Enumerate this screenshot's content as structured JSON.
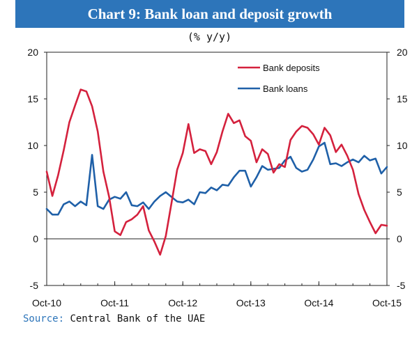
{
  "chart_data": {
    "type": "line",
    "title": "Chart 9: Bank loan and deposit growth",
    "subtitle": "(% y/y)",
    "source_label": "Source:",
    "source_text": "Central Bank of the UAE",
    "ylim": [
      -5,
      20
    ],
    "yticks": [
      "20",
      "15",
      "10",
      "5",
      "0",
      "-5"
    ],
    "ytick_values": [
      20,
      15,
      10,
      5,
      0,
      -5
    ],
    "xticks": [
      "Oct-10",
      "Oct-11",
      "Oct-12",
      "Oct-13",
      "Oct-14",
      "Oct-15"
    ],
    "xtick_months": [
      0,
      12,
      24,
      36,
      48,
      60
    ],
    "xlim_months": [
      0,
      60
    ],
    "legend_position": "top-right",
    "series": [
      {
        "name": "Bank deposits",
        "color": "#d4213d",
        "values": [
          7.2,
          4.6,
          6.8,
          9.5,
          12.5,
          14.3,
          16.0,
          15.8,
          14.2,
          11.5,
          7.2,
          4.5,
          0.8,
          0.4,
          1.8,
          2.1,
          2.6,
          3.5,
          0.9,
          -0.3,
          -1.7,
          0.3,
          3.8,
          7.4,
          9.2,
          12.3,
          9.2,
          9.6,
          9.4,
          8.0,
          9.3,
          11.5,
          13.4,
          12.4,
          12.7,
          11.0,
          10.5,
          8.2,
          9.6,
          9.1,
          7.1,
          8.0,
          7.7,
          10.6,
          11.5,
          12.1,
          11.9,
          11.2,
          10.1,
          11.9,
          11.1,
          9.3,
          10.1,
          8.9,
          7.4,
          4.8,
          3.1,
          1.8,
          0.6,
          1.5,
          1.4
        ]
      },
      {
        "name": "Bank loans",
        "color": "#1f60a8",
        "values": [
          3.2,
          2.6,
          2.6,
          3.7,
          4.0,
          3.5,
          4.0,
          3.6,
          9.0,
          3.5,
          3.2,
          4.2,
          4.5,
          4.3,
          5.0,
          3.6,
          3.5,
          3.9,
          3.2,
          4.0,
          4.6,
          5.0,
          4.5,
          4.0,
          3.9,
          4.2,
          3.7,
          5.0,
          4.9,
          5.5,
          5.2,
          5.8,
          5.7,
          6.6,
          7.3,
          7.3,
          5.6,
          6.6,
          7.8,
          7.4,
          7.5,
          7.6,
          8.4,
          8.8,
          7.6,
          7.2,
          7.4,
          8.5,
          9.9,
          10.3,
          8.0,
          8.1,
          7.8,
          8.2,
          8.5,
          8.2,
          8.9,
          8.4,
          8.6,
          7.0,
          7.7
        ]
      }
    ]
  }
}
